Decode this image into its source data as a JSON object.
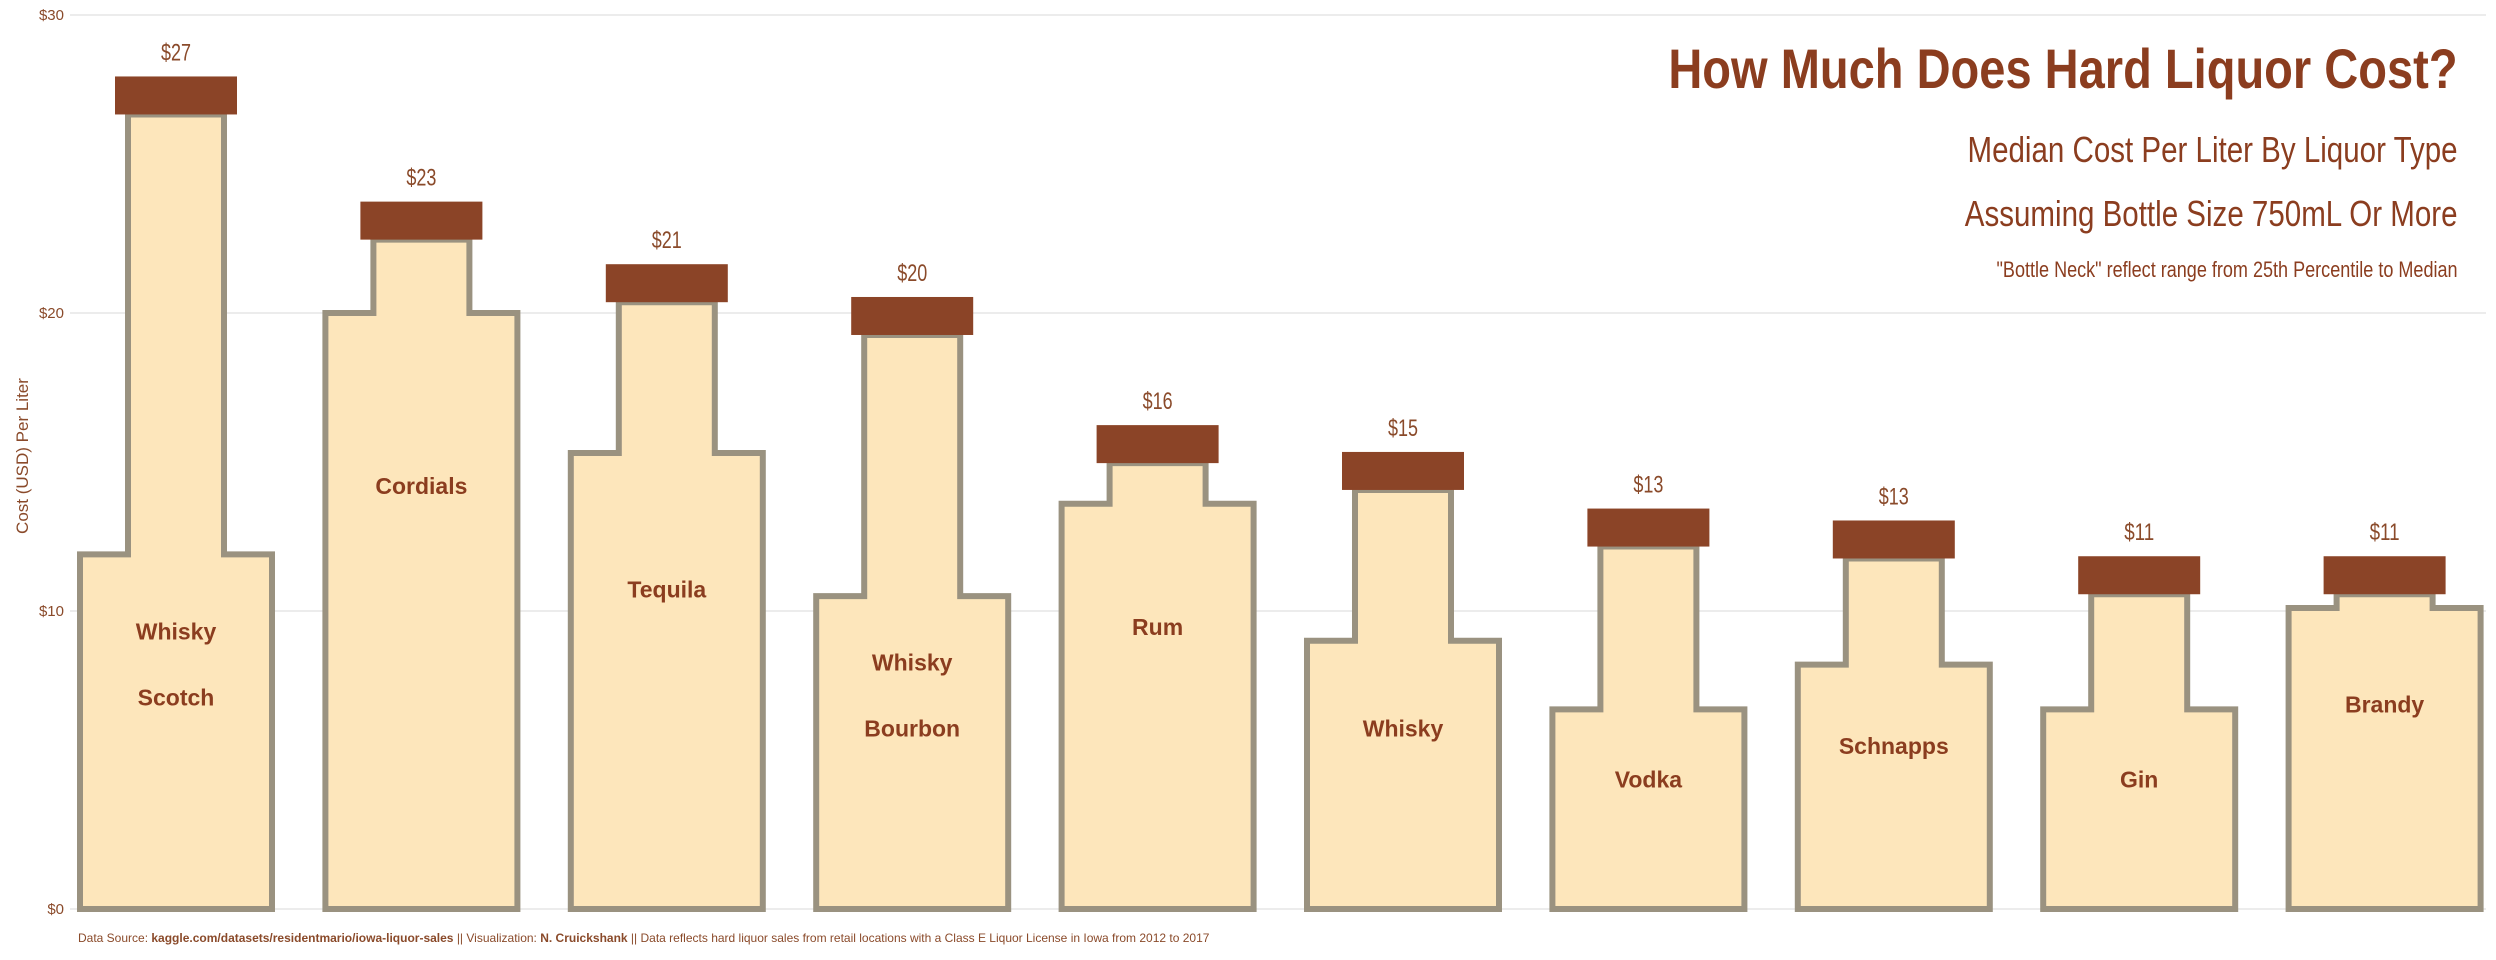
{
  "chart_data": {
    "type": "bar",
    "title": "How Much Does Hard Liquor Cost?",
    "subtitle_1": "Median Cost Per Liter By Liquor Type",
    "subtitle_2": "Assuming Bottle Size 750mL Or More",
    "note": "\"Bottle Neck\" reflect range from 25th Percentile to Median",
    "ylabel": "Cost (USD) Per Liter",
    "ylim": [
      0,
      30
    ],
    "y_ticks": [
      "$0",
      "$10",
      "$20",
      "$30"
    ],
    "grid": true,
    "categories": [
      [
        "Whisky",
        "Scotch"
      ],
      [
        "Cordials"
      ],
      [
        "Tequila"
      ],
      [
        "Whisky",
        "Bourbon"
      ],
      [
        "Rum"
      ],
      [
        "Whisky"
      ],
      [
        "Vodka"
      ],
      [
        "Schnapps"
      ],
      [
        "Gin"
      ],
      [
        "Brandy"
      ]
    ],
    "series": [
      {
        "name": "25th Percentile",
        "values": [
          11.9,
          20.0,
          15.3,
          10.5,
          13.6,
          9.0,
          6.7,
          8.2,
          6.7,
          10.1
        ]
      },
      {
        "name": "Median",
        "values": [
          27.3,
          23.1,
          21.0,
          19.9,
          15.6,
          14.7,
          12.8,
          12.4,
          11.2,
          11.2
        ]
      }
    ],
    "value_labels": [
      "$27",
      "$23",
      "$21",
      "$20",
      "$16",
      "$15",
      "$13",
      "$13",
      "$11",
      "$11"
    ],
    "colors": {
      "bottle_fill": "#fde6bb",
      "bottle_stroke": "#9a9280",
      "cap": "#8b4427",
      "text": "#8b3d1f",
      "grid": "#e6e6e6"
    }
  },
  "caption": {
    "source_prefix": "Data Source: ",
    "source_link": "kaggle.com/datasets/residentmario/iowa-liquor-sales",
    "viz_prefix": "  || Visualization: ",
    "author": "N. Cruickshank",
    "suffix": " || Data reflects  hard liquor sales  from retail  locations with a Class E Liquor License  in Iowa from 2012 to 2017"
  }
}
